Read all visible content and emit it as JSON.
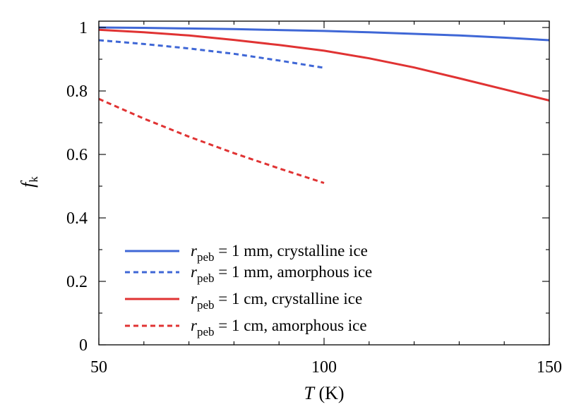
{
  "chart_data": {
    "type": "line",
    "xlabel": {
      "var": "T",
      "unit": " (K)"
    },
    "ylabel": {
      "var": "f",
      "sub": "k"
    },
    "xlim": [
      50,
      150
    ],
    "ylim": [
      0,
      1.02
    ],
    "x_major_ticks": [
      50,
      100,
      150
    ],
    "x_tick_labels": [
      "50",
      "100",
      "150"
    ],
    "x_minor_step": 10,
    "y_major_ticks": [
      0,
      0.2,
      0.4,
      0.6,
      0.8,
      1
    ],
    "y_tick_labels": [
      "0",
      "0.2",
      "0.4",
      "0.6",
      "0.8",
      "1"
    ],
    "y_minor_step": 0.1,
    "grid": false,
    "legend_position": "bottom-left",
    "series": [
      {
        "name": {
          "var": "r",
          "sub": "peb",
          "rest": " = 1 mm, crystalline ice"
        },
        "color": "#3f67d6",
        "style": "solid",
        "x": [
          50,
          60,
          70,
          80,
          90,
          100,
          110,
          120,
          130,
          140,
          150
        ],
        "y": [
          1.0,
          0.999,
          0.997,
          0.995,
          0.992,
          0.989,
          0.985,
          0.98,
          0.975,
          0.968,
          0.96
        ]
      },
      {
        "name": {
          "var": "r",
          "sub": "peb",
          "rest": " = 1 mm, amorphous ice"
        },
        "color": "#3f67d6",
        "style": "dashed",
        "x": [
          50,
          60,
          70,
          80,
          90,
          100
        ],
        "y": [
          0.96,
          0.948,
          0.934,
          0.917,
          0.896,
          0.873
        ]
      },
      {
        "name": {
          "var": "r",
          "sub": "peb",
          "rest": " = 1 cm, crystalline ice"
        },
        "color": "#e03333",
        "style": "solid",
        "x": [
          50,
          60,
          70,
          80,
          90,
          100,
          110,
          120,
          130,
          140,
          150
        ],
        "y": [
          0.993,
          0.985,
          0.975,
          0.961,
          0.945,
          0.927,
          0.903,
          0.874,
          0.84,
          0.805,
          0.77
        ]
      },
      {
        "name": {
          "var": "r",
          "sub": "peb",
          "rest": " = 1 cm, amorphous ice"
        },
        "color": "#e03333",
        "style": "dashed",
        "x": [
          50,
          60,
          70,
          80,
          90,
          100
        ],
        "y": [
          0.775,
          0.713,
          0.656,
          0.604,
          0.556,
          0.51
        ]
      }
    ]
  }
}
